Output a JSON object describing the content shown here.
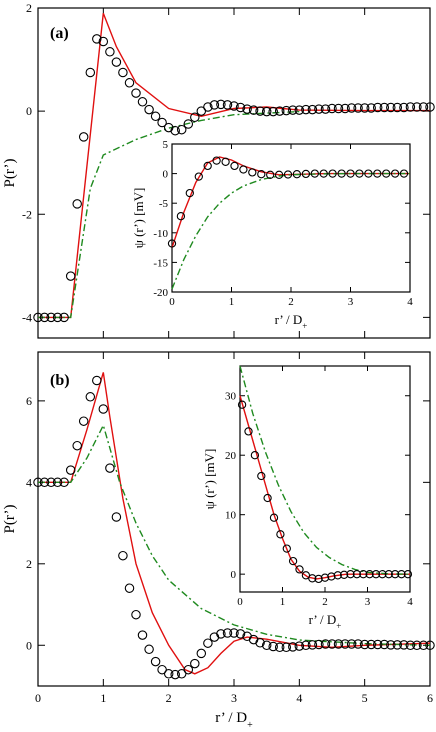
{
  "chart_data": [
    {
      "id": "a-main",
      "type": "line",
      "panel_label": "(a)",
      "xlabel": "",
      "ylabel": "P(r’)",
      "xlim": [
        0,
        6
      ],
      "ylim": [
        -4.4,
        2.0
      ],
      "xticks": [
        0,
        1,
        2,
        3,
        4,
        5,
        6
      ],
      "yticks": [
        -4,
        -2,
        0,
        2
      ],
      "show_xtick_labels": false,
      "series": [
        {
          "kind": "line",
          "color": "#e01010",
          "dash": "",
          "x": [
            0,
            0.5,
            1.0,
            1.2,
            1.5,
            2.0,
            2.5,
            3.0,
            3.5,
            4.0,
            5.0,
            6.0
          ],
          "y": [
            -4.0,
            -4.0,
            1.9,
            1.25,
            0.55,
            0.05,
            -0.1,
            0.05,
            0.08,
            0.02,
            0.01,
            0.01
          ]
        },
        {
          "kind": "line",
          "color": "#1f8a1f",
          "dash": "7,3,2,3",
          "x": [
            0,
            0.5,
            0.8,
            1.0,
            1.5,
            2.0,
            2.5,
            3.0,
            4.0,
            5.0,
            6.0
          ],
          "y": [
            -4.0,
            -4.0,
            -1.5,
            -0.85,
            -0.55,
            -0.33,
            -0.18,
            -0.07,
            -0.01,
            0.0,
            0.0
          ],
          "trim_x": 4.0
        },
        {
          "kind": "markers",
          "color": "#000000",
          "x": [
            0,
            0.1,
            0.2,
            0.3,
            0.4,
            0.5,
            0.6,
            0.7,
            0.8,
            0.9,
            1.0,
            1.1,
            1.2,
            1.3,
            1.4,
            1.5,
            1.6,
            1.7,
            1.8,
            1.9,
            2.0,
            2.1,
            2.2,
            2.3,
            2.4,
            2.5,
            2.6,
            2.7,
            2.8,
            2.9,
            3.0,
            3.1,
            3.2,
            3.3,
            3.4,
            3.5,
            3.6,
            3.7,
            3.8,
            3.9,
            4.0,
            4.1,
            4.2,
            4.3,
            4.4,
            4.5,
            4.6,
            4.7,
            4.8,
            4.9,
            5.0,
            5.1,
            5.2,
            5.3,
            5.4,
            5.5,
            5.6,
            5.7,
            5.8,
            5.9,
            6.0
          ],
          "y": [
            -4.0,
            -4.0,
            -4.0,
            -4.0,
            -4.0,
            -3.2,
            -1.8,
            -0.5,
            0.75,
            1.4,
            1.35,
            1.15,
            0.95,
            0.75,
            0.55,
            0.35,
            0.18,
            0.03,
            -0.1,
            -0.22,
            -0.32,
            -0.38,
            -0.36,
            -0.25,
            -0.12,
            0.0,
            0.08,
            0.12,
            0.13,
            0.12,
            0.1,
            0.07,
            0.04,
            0.02,
            0.0,
            -0.01,
            -0.01,
            0.0,
            0.01,
            0.02,
            0.02,
            0.03,
            0.03,
            0.04,
            0.04,
            0.05,
            0.05,
            0.05,
            0.06,
            0.06,
            0.06,
            0.06,
            0.07,
            0.07,
            0.07,
            0.07,
            0.07,
            0.08,
            0.08,
            0.08,
            0.08
          ]
        }
      ]
    },
    {
      "id": "a-inset",
      "type": "line",
      "xlabel": "r’ / D+",
      "ylabel": "ψ (r’) [mV]",
      "xlim": [
        0,
        4
      ],
      "ylim": [
        -20,
        5
      ],
      "xticks": [
        0,
        1,
        2,
        3,
        4
      ],
      "yticks": [
        -20,
        -15,
        -10,
        -5,
        0,
        5
      ],
      "show_xtick_labels": true,
      "series": [
        {
          "kind": "line",
          "color": "#e01010",
          "dash": "",
          "x": [
            0,
            0.2,
            0.4,
            0.6,
            0.8,
            1.0,
            1.2,
            1.5,
            1.8,
            2.2,
            2.6,
            3.0,
            4.0
          ],
          "y": [
            -12.5,
            -6.5,
            -1.5,
            1.8,
            2.8,
            2.3,
            1.3,
            0.3,
            -0.2,
            -0.1,
            0.0,
            0.0,
            0.0
          ]
        },
        {
          "kind": "line",
          "color": "#1f8a1f",
          "dash": "7,3,2,3",
          "x": [
            0,
            0.2,
            0.4,
            0.6,
            0.8,
            1.0,
            1.2,
            1.5,
            1.8,
            2.0,
            2.5,
            3.0,
            4.0
          ],
          "y": [
            -19.5,
            -14.5,
            -10.5,
            -7.3,
            -5.0,
            -3.3,
            -2.1,
            -1.0,
            -0.4,
            -0.2,
            -0.05,
            0.0,
            0.0
          ]
        },
        {
          "kind": "markers",
          "color": "#000000",
          "x": [
            0,
            0.15,
            0.3,
            0.45,
            0.6,
            0.75,
            0.9,
            1.05,
            1.2,
            1.35,
            1.5,
            1.65,
            1.8,
            1.95,
            2.1,
            2.25,
            2.4,
            2.55,
            2.7,
            2.85,
            3.0,
            3.15,
            3.3,
            3.45,
            3.6,
            3.75,
            3.9
          ],
          "y": [
            -11.8,
            -7.2,
            -3.3,
            -0.5,
            1.3,
            2.2,
            2.0,
            1.3,
            0.7,
            0.2,
            -0.1,
            -0.2,
            -0.2,
            -0.15,
            -0.1,
            -0.05,
            0.0,
            0.0,
            0.0,
            0.0,
            0.0,
            0.0,
            0.0,
            0.0,
            0.0,
            0.0,
            0.0
          ]
        }
      ]
    },
    {
      "id": "b-main",
      "type": "line",
      "panel_label": "(b)",
      "xlabel": "r’ / D+",
      "ylabel": "P(r’)",
      "xlim": [
        0,
        6
      ],
      "ylim": [
        -1.0,
        7.2
      ],
      "xticks": [
        0,
        1,
        2,
        3,
        4,
        5,
        6
      ],
      "yticks": [
        0,
        2,
        4,
        6
      ],
      "show_xtick_labels": true,
      "series": [
        {
          "kind": "line",
          "color": "#e01010",
          "dash": "",
          "x": [
            0,
            0.5,
            0.75,
            1.0,
            1.1,
            1.3,
            1.5,
            1.75,
            2.0,
            2.25,
            2.4,
            2.6,
            2.8,
            3.0,
            3.2,
            3.5,
            4.0,
            4.5,
            5.0,
            6.0
          ],
          "y": [
            4.0,
            4.0,
            5.3,
            6.7,
            5.6,
            3.6,
            2.0,
            0.8,
            0.0,
            -0.6,
            -0.7,
            -0.55,
            -0.2,
            0.1,
            0.2,
            0.15,
            0.0,
            -0.05,
            0.0,
            0.05
          ]
        },
        {
          "kind": "line",
          "color": "#1f8a1f",
          "dash": "7,3,2,3",
          "x": [
            0,
            0.5,
            0.75,
            1.0,
            1.25,
            1.5,
            1.75,
            2.0,
            2.5,
            3.0,
            3.5,
            4.0,
            5.0,
            6.0
          ],
          "y": [
            4.0,
            4.0,
            4.6,
            5.4,
            4.0,
            3.0,
            2.2,
            1.6,
            0.9,
            0.5,
            0.27,
            0.13,
            0.04,
            0.0
          ]
        },
        {
          "kind": "markers",
          "color": "#000000",
          "x": [
            0,
            0.1,
            0.2,
            0.3,
            0.4,
            0.5,
            0.6,
            0.7,
            0.8,
            0.9,
            1.0,
            1.1,
            1.2,
            1.3,
            1.4,
            1.5,
            1.6,
            1.7,
            1.8,
            1.9,
            2.0,
            2.1,
            2.2,
            2.3,
            2.4,
            2.5,
            2.6,
            2.7,
            2.8,
            2.9,
            3.0,
            3.1,
            3.2,
            3.3,
            3.4,
            3.5,
            3.6,
            3.7,
            3.8,
            3.9,
            4.0,
            4.1,
            4.2,
            4.3,
            4.4,
            4.5,
            4.6,
            4.7,
            4.8,
            4.9,
            5.0,
            5.1,
            5.2,
            5.3,
            5.4,
            5.5,
            5.6,
            5.7,
            5.8,
            5.9,
            6.0
          ],
          "y": [
            4.0,
            4.0,
            4.0,
            4.0,
            4.0,
            4.3,
            4.9,
            5.5,
            6.1,
            6.5,
            5.8,
            4.35,
            3.15,
            2.2,
            1.4,
            0.75,
            0.25,
            -0.1,
            -0.4,
            -0.6,
            -0.7,
            -0.72,
            -0.7,
            -0.6,
            -0.45,
            -0.2,
            0.05,
            0.2,
            0.28,
            0.3,
            0.3,
            0.28,
            0.22,
            0.14,
            0.06,
            0.0,
            -0.03,
            -0.05,
            -0.05,
            -0.04,
            -0.02,
            0.0,
            0.01,
            0.02,
            0.03,
            0.03,
            0.03,
            0.03,
            0.03,
            0.03,
            0.02,
            0.02,
            0.02,
            0.02,
            0.01,
            0.01,
            0.01,
            0.0,
            0.0,
            0.0,
            0.0
          ]
        }
      ]
    },
    {
      "id": "b-inset",
      "type": "line",
      "xlabel": "r’ / D+",
      "ylabel": "ψ (r’) [mV]",
      "xlim": [
        0,
        4
      ],
      "ylim": [
        -3,
        35
      ],
      "xticks": [
        0,
        1,
        2,
        3,
        4
      ],
      "yticks": [
        0,
        10,
        20,
        30
      ],
      "show_xtick_labels": true,
      "series": [
        {
          "kind": "line",
          "color": "#e01010",
          "dash": "",
          "x": [
            0,
            0.2,
            0.4,
            0.6,
            0.8,
            1.0,
            1.2,
            1.4,
            1.6,
            1.8,
            2.0,
            2.2,
            2.5,
            3.0,
            4.0
          ],
          "y": [
            30,
            25,
            20,
            15,
            10,
            6,
            2.5,
            0.5,
            -0.5,
            -0.8,
            -0.6,
            -0.3,
            0.0,
            0.0,
            0.0
          ]
        },
        {
          "kind": "line",
          "color": "#1f8a1f",
          "dash": "7,3,2,3",
          "x": [
            0,
            0.3,
            0.6,
            0.9,
            1.2,
            1.5,
            1.8,
            2.1,
            2.4,
            2.7,
            3.0,
            3.5,
            4.0
          ],
          "y": [
            35,
            27,
            20.5,
            15,
            10.5,
            7,
            4.5,
            2.8,
            1.6,
            0.8,
            0.3,
            0.05,
            0.0
          ]
        },
        {
          "kind": "markers",
          "color": "#000000",
          "x": [
            0.05,
            0.2,
            0.35,
            0.5,
            0.65,
            0.8,
            0.95,
            1.1,
            1.25,
            1.4,
            1.55,
            1.7,
            1.85,
            2.0,
            2.15,
            2.3,
            2.45,
            2.6,
            2.75,
            2.9,
            3.05,
            3.2,
            3.35,
            3.5,
            3.65,
            3.8,
            3.95
          ],
          "y": [
            28.5,
            24,
            20,
            16.5,
            12.8,
            9.5,
            6.7,
            4.3,
            2.2,
            0.8,
            -0.2,
            -0.7,
            -0.8,
            -0.6,
            -0.4,
            -0.2,
            -0.1,
            0.0,
            0.0,
            0.0,
            0.0,
            0.0,
            0.0,
            0.0,
            0.0,
            0.0,
            0.0
          ]
        }
      ]
    }
  ]
}
